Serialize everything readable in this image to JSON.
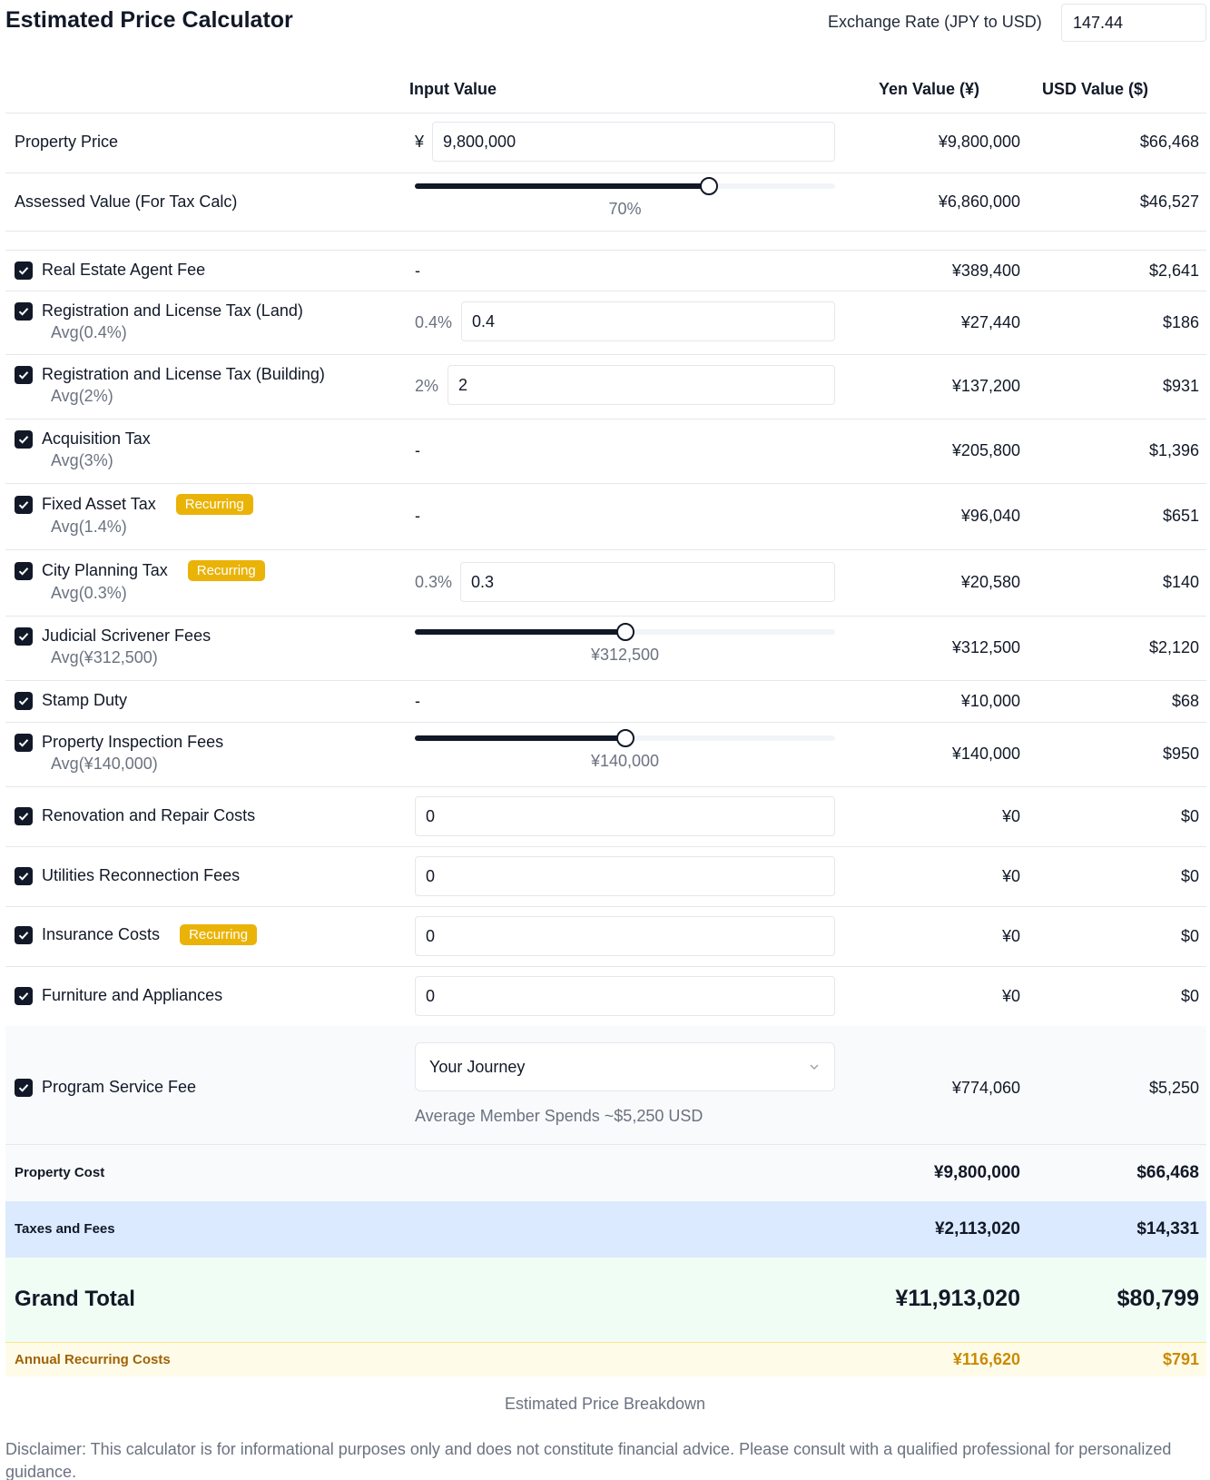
{
  "header": {
    "title": "Estimated Price Calculator",
    "exchange_rate_label": "Exchange Rate (JPY to USD)",
    "exchange_rate_value": "147.44"
  },
  "columns": {
    "input": "Input Value",
    "yen": "Yen Value (¥)",
    "usd": "USD Value ($)"
  },
  "property_price": {
    "label": "Property Price",
    "currency_symbol": "¥",
    "input": "9,800,000",
    "yen": "¥9,800,000",
    "usd": "$66,468"
  },
  "assessed_value": {
    "label": "Assessed Value (For Tax Calc)",
    "slider_fraction": 0.7,
    "slider_text": "70%",
    "yen": "¥6,860,000",
    "usd": "$46,527"
  },
  "items": {
    "agent_fee": {
      "label": "Real Estate Agent Fee",
      "checked": true,
      "input": "-",
      "yen": "¥389,400",
      "usd": "$2,641"
    },
    "reg_land": {
      "label": "Registration and License Tax (Land)",
      "avg": "Avg(0.4%)",
      "checked": true,
      "pct": "0.4%",
      "input": "0.4",
      "yen": "¥27,440",
      "usd": "$186"
    },
    "reg_building": {
      "label": "Registration and License Tax (Building)",
      "avg": "Avg(2%)",
      "checked": true,
      "pct": "2%",
      "input": "2",
      "yen": "¥137,200",
      "usd": "$931"
    },
    "acquisition": {
      "label": "Acquisition Tax",
      "avg": "Avg(3%)",
      "checked": true,
      "input": "-",
      "yen": "¥205,800",
      "usd": "$1,396"
    },
    "fixed_asset": {
      "label": "Fixed Asset Tax",
      "badge": "Recurring",
      "avg": "Avg(1.4%)",
      "checked": true,
      "input": "-",
      "yen": "¥96,040",
      "usd": "$651"
    },
    "city_planning": {
      "label": "City Planning Tax",
      "badge": "Recurring",
      "avg": "Avg(0.3%)",
      "checked": true,
      "pct": "0.3%",
      "input": "0.3",
      "yen": "¥20,580",
      "usd": "$140"
    },
    "judicial": {
      "label": "Judicial Scrivener Fees",
      "avg": "Avg(¥312,500)",
      "checked": true,
      "slider_fraction": 0.5,
      "slider_text": "¥312,500",
      "yen": "¥312,500",
      "usd": "$2,120"
    },
    "stamp": {
      "label": "Stamp Duty",
      "checked": true,
      "input": "-",
      "yen": "¥10,000",
      "usd": "$68"
    },
    "inspection": {
      "label": "Property Inspection Fees",
      "avg": "Avg(¥140,000)",
      "checked": true,
      "slider_fraction": 0.5,
      "slider_text": "¥140,000",
      "yen": "¥140,000",
      "usd": "$950"
    },
    "renovation": {
      "label": "Renovation and Repair Costs",
      "checked": true,
      "input": "0",
      "yen": "¥0",
      "usd": "$0"
    },
    "utilities": {
      "label": "Utilities Reconnection Fees",
      "checked": true,
      "input": "0",
      "yen": "¥0",
      "usd": "$0"
    },
    "insurance": {
      "label": "Insurance Costs",
      "badge": "Recurring",
      "checked": true,
      "input": "0",
      "yen": "¥0",
      "usd": "$0"
    },
    "furniture": {
      "label": "Furniture and Appliances",
      "checked": true,
      "input": "0",
      "yen": "¥0",
      "usd": "$0"
    },
    "program": {
      "label": "Program Service Fee",
      "checked": true,
      "select": "Your Journey",
      "note": "Average Member Spends ~$5,250 USD",
      "yen": "¥774,060",
      "usd": "$5,250"
    }
  },
  "summary": {
    "property_cost": {
      "label": "Property Cost",
      "yen": "¥9,800,000",
      "usd": "$66,468"
    },
    "taxes_fees": {
      "label": "Taxes and Fees",
      "yen": "¥2,113,020",
      "usd": "$14,331"
    },
    "grand_total": {
      "label": "Grand Total",
      "yen": "¥11,913,020",
      "usd": "$80,799"
    },
    "annual_recurring": {
      "label": "Annual Recurring Costs",
      "yen": "¥116,620",
      "usd": "$791"
    }
  },
  "footer": {
    "caption": "Estimated Price Breakdown",
    "disclaimer": "Disclaimer: This calculator is for informational purposes only and does not constitute financial advice. Please consult with a qualified professional for personalized guidance."
  },
  "colors": {
    "accent": "#111827",
    "badge": "#eab308",
    "taxes_bg": "#dbeafe",
    "total_bg": "#f0fdf4",
    "recurring_bg": "#fefce8",
    "recurring_text": "#a16207"
  }
}
